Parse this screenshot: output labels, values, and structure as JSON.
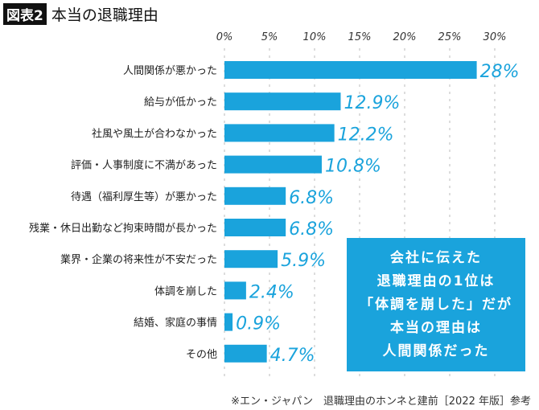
{
  "header": {
    "badge": "図表2",
    "title": "本当の退職理由"
  },
  "chart_data": {
    "type": "bar",
    "orientation": "horizontal",
    "categories": [
      "人間関係が悪かった",
      "給与が低かった",
      "社風や風土が合わなかった",
      "評価・人事制度に不満があった",
      "待遇（福利厚生等）が悪かった",
      "残業・休日出勤など拘束時間が長かった",
      "業界・企業の将来性が不安だった",
      "体調を崩した",
      "結婚、家庭の事情",
      "その他"
    ],
    "values": [
      28,
      12.9,
      12.2,
      10.8,
      6.8,
      6.8,
      5.9,
      2.4,
      0.9,
      4.7
    ],
    "value_labels": [
      "28%",
      "12.9%",
      "12.2%",
      "10.8%",
      "6.8%",
      "6.8%",
      "5.9%",
      "2.4%",
      "0.9%",
      "4.7%"
    ],
    "xlim": [
      0,
      30
    ],
    "xticks": [
      "0%",
      "5%",
      "10%",
      "15%",
      "20%",
      "25%",
      "30%"
    ],
    "grid": true,
    "bar_color": "#1aa3dc"
  },
  "annotation": {
    "lines": [
      "会社に伝えた",
      "退職理由の1位は",
      "「体調を崩した」だが",
      "本当の理由は",
      "人間関係だった"
    ]
  },
  "source": "※エン・ジャパン　退職理由のホンネと建前［2022 年版］参考"
}
